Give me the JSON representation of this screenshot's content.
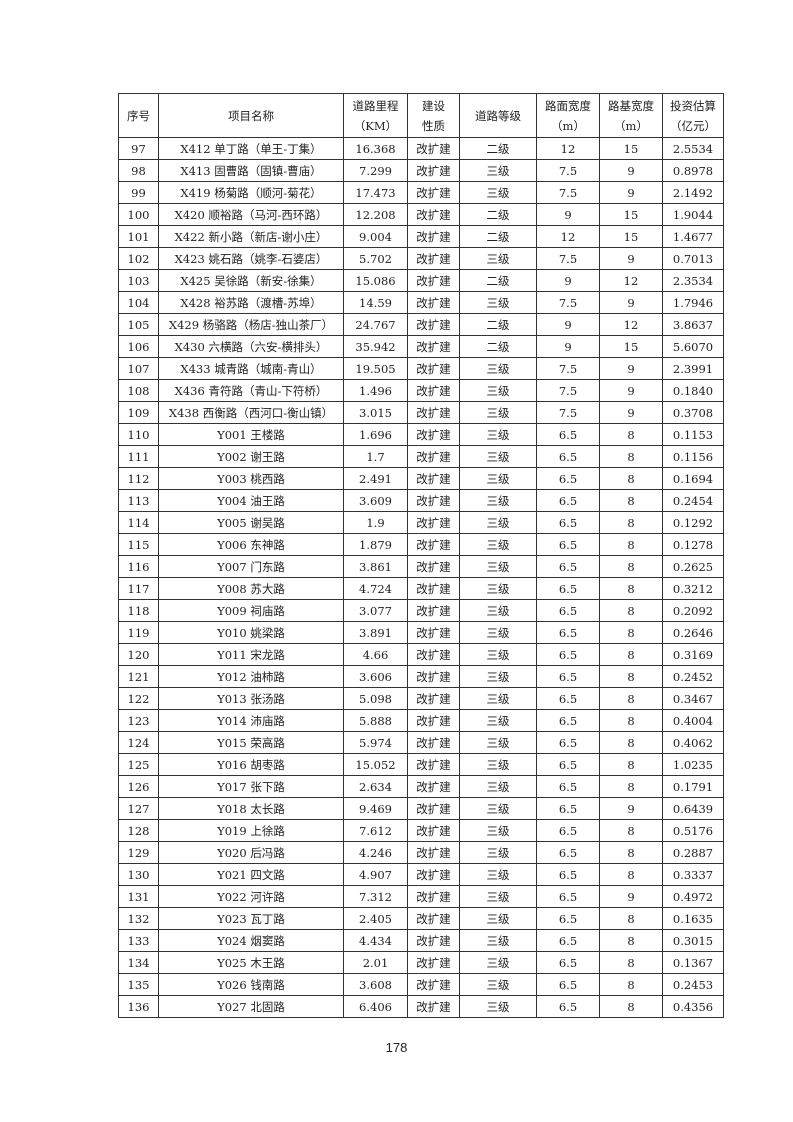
{
  "headers": [
    "序号",
    "项目名称",
    "道路里程（KM）",
    "建设性质",
    "道路等级",
    "路面宽度（m）",
    "路基宽度（m）",
    "投资估算（亿元）"
  ],
  "header_lines": [
    [
      "序号"
    ],
    [
      "项目名称"
    ],
    [
      "道路里程",
      "（KM）"
    ],
    [
      "建设",
      "性质"
    ],
    [
      "道路等级"
    ],
    [
      "路面宽度",
      "（m）"
    ],
    [
      "路基宽度",
      "（m）"
    ],
    [
      "投资估算",
      "（亿元）"
    ]
  ],
  "rows": [
    [
      "97",
      "X412 单丁路（单王-丁集）",
      "16.368",
      "改扩建",
      "二级",
      "12",
      "15",
      "2.5534"
    ],
    [
      "98",
      "X413 固曹路（固镇-曹庙）",
      "7.299",
      "改扩建",
      "三级",
      "7.5",
      "9",
      "0.8978"
    ],
    [
      "99",
      "X419 杨菊路（顺河-菊花）",
      "17.473",
      "改扩建",
      "三级",
      "7.5",
      "9",
      "2.1492"
    ],
    [
      "100",
      "X420 顺裕路（马河-西环路）",
      "12.208",
      "改扩建",
      "二级",
      "9",
      "15",
      "1.9044"
    ],
    [
      "101",
      "X422 新小路（新店-谢小庄）",
      "9.004",
      "改扩建",
      "二级",
      "12",
      "15",
      "1.4677"
    ],
    [
      "102",
      "X423 姚石路（姚李-石婆店）",
      "5.702",
      "改扩建",
      "三级",
      "7.5",
      "9",
      "0.7013"
    ],
    [
      "103",
      "X425 吴徐路（新安-徐集）",
      "15.086",
      "改扩建",
      "二级",
      "9",
      "12",
      "2.3534"
    ],
    [
      "104",
      "X428 裕苏路（渡槽-苏埠）",
      "14.59",
      "改扩建",
      "三级",
      "7.5",
      "9",
      "1.7946"
    ],
    [
      "105",
      "X429 杨骆路（杨店-独山茶厂）",
      "24.767",
      "改扩建",
      "二级",
      "9",
      "12",
      "3.8637"
    ],
    [
      "106",
      "X430 六横路（六安-横排头）",
      "35.942",
      "改扩建",
      "二级",
      "9",
      "15",
      "5.6070"
    ],
    [
      "107",
      "X433 城青路（城南-青山）",
      "19.505",
      "改扩建",
      "三级",
      "7.5",
      "9",
      "2.3991"
    ],
    [
      "108",
      "X436 青符路（青山-下符桥）",
      "1.496",
      "改扩建",
      "三级",
      "7.5",
      "9",
      "0.1840"
    ],
    [
      "109",
      "X438 西衡路（西河口-衡山镇）",
      "3.015",
      "改扩建",
      "三级",
      "7.5",
      "9",
      "0.3708"
    ],
    [
      "110",
      "Y001 王楼路",
      "1.696",
      "改扩建",
      "三级",
      "6.5",
      "8",
      "0.1153"
    ],
    [
      "111",
      "Y002 谢王路",
      "1.7",
      "改扩建",
      "三级",
      "6.5",
      "8",
      "0.1156"
    ],
    [
      "112",
      "Y003 桃西路",
      "2.491",
      "改扩建",
      "三级",
      "6.5",
      "8",
      "0.1694"
    ],
    [
      "113",
      "Y004 油王路",
      "3.609",
      "改扩建",
      "三级",
      "6.5",
      "8",
      "0.2454"
    ],
    [
      "114",
      "Y005 谢吴路",
      "1.9",
      "改扩建",
      "三级",
      "6.5",
      "8",
      "0.1292"
    ],
    [
      "115",
      "Y006 东神路",
      "1.879",
      "改扩建",
      "三级",
      "6.5",
      "8",
      "0.1278"
    ],
    [
      "116",
      "Y007 门东路",
      "3.861",
      "改扩建",
      "三级",
      "6.5",
      "8",
      "0.2625"
    ],
    [
      "117",
      "Y008 苏大路",
      "4.724",
      "改扩建",
      "三级",
      "6.5",
      "8",
      "0.3212"
    ],
    [
      "118",
      "Y009 祠庙路",
      "3.077",
      "改扩建",
      "三级",
      "6.5",
      "8",
      "0.2092"
    ],
    [
      "119",
      "Y010 姚梁路",
      "3.891",
      "改扩建",
      "三级",
      "6.5",
      "8",
      "0.2646"
    ],
    [
      "120",
      "Y011 宋龙路",
      "4.66",
      "改扩建",
      "三级",
      "6.5",
      "8",
      "0.3169"
    ],
    [
      "121",
      "Y012 油柿路",
      "3.606",
      "改扩建",
      "三级",
      "6.5",
      "8",
      "0.2452"
    ],
    [
      "122",
      "Y013 张汤路",
      "5.098",
      "改扩建",
      "三级",
      "6.5",
      "8",
      "0.3467"
    ],
    [
      "123",
      "Y014 沛庙路",
      "5.888",
      "改扩建",
      "三级",
      "6.5",
      "8",
      "0.4004"
    ],
    [
      "124",
      "Y015 荣高路",
      "5.974",
      "改扩建",
      "三级",
      "6.5",
      "8",
      "0.4062"
    ],
    [
      "125",
      "Y016 胡枣路",
      "15.052",
      "改扩建",
      "三级",
      "6.5",
      "8",
      "1.0235"
    ],
    [
      "126",
      "Y017 张下路",
      "2.634",
      "改扩建",
      "三级",
      "6.5",
      "8",
      "0.1791"
    ],
    [
      "127",
      "Y018 太长路",
      "9.469",
      "改扩建",
      "三级",
      "6.5",
      "9",
      "0.6439"
    ],
    [
      "128",
      "Y019 上徐路",
      "7.612",
      "改扩建",
      "三级",
      "6.5",
      "8",
      "0.5176"
    ],
    [
      "129",
      "Y020 后冯路",
      "4.246",
      "改扩建",
      "三级",
      "6.5",
      "8",
      "0.2887"
    ],
    [
      "130",
      "Y021 四文路",
      "4.907",
      "改扩建",
      "三级",
      "6.5",
      "8",
      "0.3337"
    ],
    [
      "131",
      "Y022 河许路",
      "7.312",
      "改扩建",
      "三级",
      "6.5",
      "9",
      "0.4972"
    ],
    [
      "132",
      "Y023 瓦丁路",
      "2.405",
      "改扩建",
      "三级",
      "6.5",
      "8",
      "0.1635"
    ],
    [
      "133",
      "Y024 烟窦路",
      "4.434",
      "改扩建",
      "三级",
      "6.5",
      "8",
      "0.3015"
    ],
    [
      "134",
      "Y025 木王路",
      "2.01",
      "改扩建",
      "三级",
      "6.5",
      "8",
      "0.1367"
    ],
    [
      "135",
      "Y026 钱南路",
      "3.608",
      "改扩建",
      "三级",
      "6.5",
      "8",
      "0.2453"
    ],
    [
      "136",
      "Y027 北固路",
      "6.406",
      "改扩建",
      "三级",
      "6.5",
      "8",
      "0.4356"
    ]
  ],
  "page_number": "178"
}
